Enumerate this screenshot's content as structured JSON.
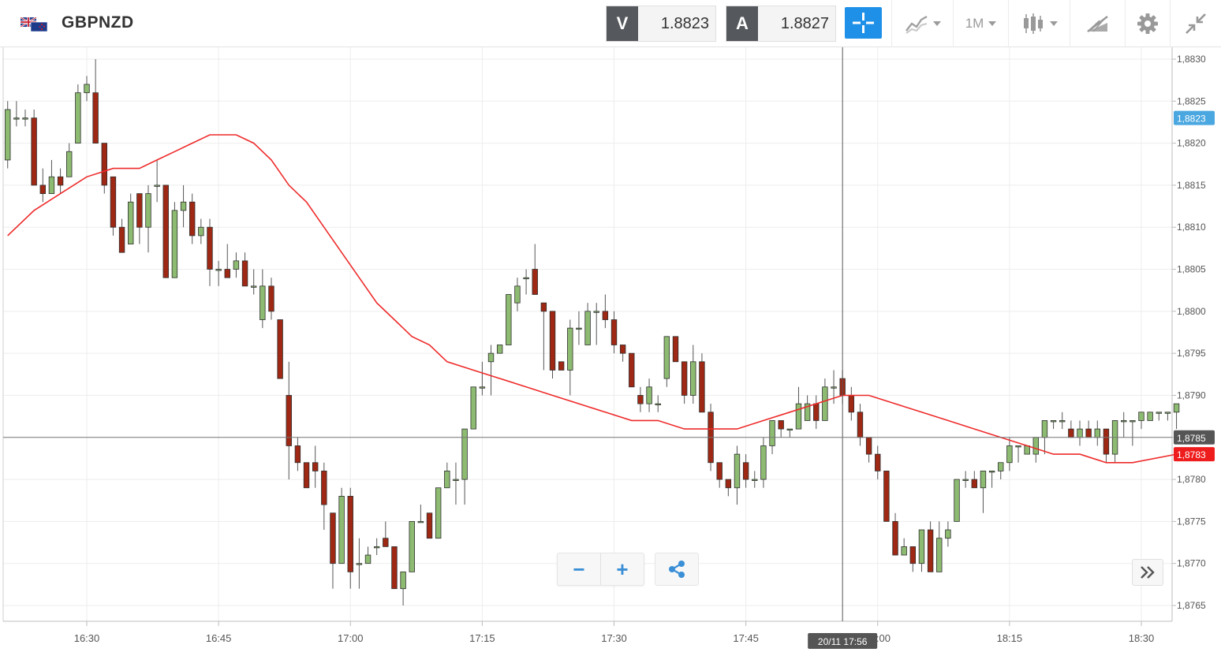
{
  "header": {
    "symbol": "GBPNZD",
    "sell_tag": "V",
    "sell_price": "1.8823",
    "buy_tag": "A",
    "buy_price": "1.8827",
    "timeframe": "1M",
    "icons": {
      "flag": "gb-nz-flag-icon",
      "crosshair": "crosshair-icon",
      "chart_type": "line-chart-icon",
      "indicators": "candlestick-icon",
      "drawing": "drawing-tools-icon",
      "settings": "gear-icon",
      "collapse": "collapse-arrows-icon"
    },
    "colors": {
      "sell_tag_bg": "#55585c",
      "crosshair_active": "#1e90e8"
    }
  },
  "chart_data": {
    "type": "candlestick",
    "title": "",
    "xlabel": "",
    "ylabel": "",
    "grid": true,
    "ylim": [
      1.8763,
      1.8831
    ],
    "y_ticks": [
      "1,8830",
      "1,8825",
      "1,8820",
      "1,8815",
      "1,8810",
      "1,8805",
      "1,8800",
      "1,8795",
      "1,8790",
      "1,8785",
      "1,8780",
      "1,8775",
      "1,8770",
      "1,8765"
    ],
    "x_ticks": [
      "16:30",
      "16:45",
      "17:00",
      "17:15",
      "17:30",
      "17:45",
      "18:00",
      "18:15",
      "18:30"
    ],
    "x_tick_times": [
      30,
      45,
      60,
      75,
      90,
      105,
      120,
      135,
      150
    ],
    "x_start_time": 21,
    "x_end_time": 154,
    "crosshair": {
      "time_label": "20/11 17:56",
      "time": 116,
      "price": 1.8785,
      "price_label": "1,8785"
    },
    "price_labels": [
      {
        "label": "1,8823",
        "value": 1.8823,
        "color": "#4aa7e0"
      },
      {
        "label": "1,8783",
        "value": 1.8783,
        "color": "#ee1c1c"
      }
    ],
    "up_color": "#8dbb71",
    "down_color": "#9e2814",
    "ma_color": "#ee2a2a",
    "ma_series": [
      [
        21,
        1.8809
      ],
      [
        24,
        1.8812
      ],
      [
        27,
        1.8814
      ],
      [
        30,
        1.8816
      ],
      [
        33,
        1.8817
      ],
      [
        36,
        1.8817
      ],
      [
        38,
        1.8818
      ],
      [
        40,
        1.8819
      ],
      [
        42,
        1.882
      ],
      [
        44,
        1.8821
      ],
      [
        46,
        1.8821
      ],
      [
        47,
        1.8821
      ],
      [
        49,
        1.882
      ],
      [
        51,
        1.8818
      ],
      [
        53,
        1.8815
      ],
      [
        55,
        1.8813
      ],
      [
        57,
        1.881
      ],
      [
        59,
        1.8807
      ],
      [
        61,
        1.8804
      ],
      [
        63,
        1.8801
      ],
      [
        65,
        1.8799
      ],
      [
        67,
        1.8797
      ],
      [
        69,
        1.8796
      ],
      [
        71,
        1.8794
      ],
      [
        74,
        1.8793
      ],
      [
        77,
        1.8792
      ],
      [
        80,
        1.8791
      ],
      [
        83,
        1.879
      ],
      [
        86,
        1.8789
      ],
      [
        89,
        1.8788
      ],
      [
        92,
        1.8787
      ],
      [
        95,
        1.8787
      ],
      [
        98,
        1.8786
      ],
      [
        101,
        1.8786
      ],
      [
        104,
        1.8786
      ],
      [
        107,
        1.8787
      ],
      [
        110,
        1.8788
      ],
      [
        113,
        1.8789
      ],
      [
        116,
        1.879
      ],
      [
        119,
        1.879
      ],
      [
        122,
        1.8789
      ],
      [
        125,
        1.8788
      ],
      [
        128,
        1.8787
      ],
      [
        131,
        1.8786
      ],
      [
        134,
        1.8785
      ],
      [
        137,
        1.8784
      ],
      [
        140,
        1.8783
      ],
      [
        143,
        1.8783
      ],
      [
        146,
        1.8782
      ],
      [
        149,
        1.8782
      ],
      [
        154,
        1.8783
      ]
    ],
    "candles": [
      [
        21,
        1.8818,
        1.8824,
        1.8825,
        1.8817
      ],
      [
        22,
        1.8823,
        1.8823,
        1.8825,
        1.8822
      ],
      [
        23,
        1.8823,
        1.8823,
        1.8824,
        1.8822
      ],
      [
        24,
        1.8823,
        1.8815,
        1.8824,
        1.8815
      ],
      [
        25,
        1.8815,
        1.8814,
        1.8817,
        1.8813
      ],
      [
        26,
        1.8814,
        1.8816,
        1.8818,
        1.8814
      ],
      [
        27,
        1.8816,
        1.8815,
        1.8817,
        1.8814
      ],
      [
        28,
        1.8816,
        1.8819,
        1.882,
        1.8816
      ],
      [
        29,
        1.882,
        1.8826,
        1.8827,
        1.882
      ],
      [
        30,
        1.8826,
        1.8827,
        1.8828,
        1.8825
      ],
      [
        31,
        1.8826,
        1.882,
        1.883,
        1.882
      ],
      [
        32,
        1.882,
        1.8815,
        1.882,
        1.8814
      ],
      [
        33,
        1.8816,
        1.881,
        1.8816,
        1.8809
      ],
      [
        34,
        1.881,
        1.8807,
        1.8811,
        1.8807
      ],
      [
        35,
        1.8808,
        1.8813,
        1.8814,
        1.8808
      ],
      [
        36,
        1.8814,
        1.881,
        1.8814,
        1.8808
      ],
      [
        37,
        1.881,
        1.8814,
        1.8815,
        1.8807
      ],
      [
        38,
        1.8815,
        1.8815,
        1.8818,
        1.8813
      ],
      [
        39,
        1.8815,
        1.8804,
        1.8815,
        1.8804
      ],
      [
        40,
        1.8804,
        1.8812,
        1.8813,
        1.8804
      ],
      [
        41,
        1.8812,
        1.8813,
        1.8815,
        1.881
      ],
      [
        42,
        1.8813,
        1.8809,
        1.8814,
        1.8808
      ],
      [
        43,
        1.8809,
        1.881,
        1.8811,
        1.8808
      ],
      [
        44,
        1.881,
        1.8805,
        1.8811,
        1.8803
      ],
      [
        45,
        1.8805,
        1.8805,
        1.8806,
        1.8803
      ],
      [
        46,
        1.8805,
        1.8804,
        1.8808,
        1.8804
      ],
      [
        47,
        1.8805,
        1.8806,
        1.8807,
        1.8804
      ],
      [
        48,
        1.8806,
        1.8803,
        1.8807,
        1.8803
      ],
      [
        49,
        1.8803,
        1.8803,
        1.8805,
        1.8802
      ],
      [
        50,
        1.8799,
        1.8803,
        1.8805,
        1.8798
      ],
      [
        51,
        1.8803,
        1.88,
        1.8804,
        1.8799
      ],
      [
        52,
        1.8799,
        1.8792,
        1.8799,
        1.8792
      ],
      [
        53,
        1.879,
        1.8784,
        1.8794,
        1.878
      ],
      [
        54,
        1.8784,
        1.8782,
        1.8785,
        1.8781
      ],
      [
        55,
        1.8782,
        1.8779,
        1.8782,
        1.8779
      ],
      [
        56,
        1.8782,
        1.8781,
        1.8784,
        1.8779
      ],
      [
        57,
        1.8781,
        1.8777,
        1.8782,
        1.8774
      ],
      [
        58,
        1.8776,
        1.877,
        1.8776,
        1.8767
      ],
      [
        59,
        1.877,
        1.8778,
        1.8779,
        1.877
      ],
      [
        60,
        1.8778,
        1.8769,
        1.8779,
        1.8767
      ],
      [
        61,
        1.877,
        1.877,
        1.8773,
        1.8767
      ],
      [
        62,
        1.877,
        1.8771,
        1.8772,
        1.877
      ],
      [
        63,
        1.8772,
        1.8772,
        1.8773,
        1.8771
      ],
      [
        64,
        1.8773,
        1.8772,
        1.8775,
        1.8772
      ],
      [
        65,
        1.8772,
        1.8767,
        1.8772,
        1.8767
      ],
      [
        66,
        1.8767,
        1.8769,
        1.8769,
        1.8765
      ],
      [
        67,
        1.8769,
        1.8775,
        1.8775,
        1.8769
      ],
      [
        68,
        1.8775,
        1.8775,
        1.8777,
        1.8775
      ],
      [
        69,
        1.8776,
        1.8773,
        1.8776,
        1.8773
      ],
      [
        70,
        1.8773,
        1.8779,
        1.8779,
        1.8773
      ],
      [
        71,
        1.8779,
        1.8781,
        1.8782,
        1.8779
      ],
      [
        72,
        1.878,
        1.878,
        1.8782,
        1.8777
      ],
      [
        73,
        1.878,
        1.8786,
        1.8786,
        1.8777
      ],
      [
        74,
        1.8786,
        1.8791,
        1.8791,
        1.8786
      ],
      [
        75,
        1.8791,
        1.8791,
        1.8794,
        1.879
      ],
      [
        76,
        1.8794,
        1.8795,
        1.8796,
        1.879
      ],
      [
        77,
        1.8795,
        1.8796,
        1.8796,
        1.8795
      ],
      [
        78,
        1.8796,
        1.8802,
        1.8802,
        1.8796
      ],
      [
        79,
        1.8801,
        1.8803,
        1.8804,
        1.88
      ],
      [
        80,
        1.8804,
        1.8804,
        1.8805,
        1.8802
      ],
      [
        81,
        1.8805,
        1.8802,
        1.8808,
        1.8802
      ],
      [
        82,
        1.8801,
        1.88,
        1.8801,
        1.8793
      ],
      [
        83,
        1.88,
        1.8793,
        1.88,
        1.8792
      ],
      [
        84,
        1.8794,
        1.8793,
        1.8794,
        1.8793
      ],
      [
        85,
        1.8793,
        1.8798,
        1.8799,
        1.879
      ],
      [
        86,
        1.8798,
        1.8798,
        1.88,
        1.8796
      ],
      [
        87,
        1.8796,
        1.88,
        1.8801,
        1.8796
      ],
      [
        88,
        1.88,
        1.88,
        1.8801,
        1.8796
      ],
      [
        89,
        1.88,
        1.8799,
        1.8802,
        1.8798
      ],
      [
        90,
        1.8799,
        1.8796,
        1.88,
        1.8795
      ],
      [
        91,
        1.8796,
        1.8795,
        1.8796,
        1.8794
      ],
      [
        92,
        1.8795,
        1.8791,
        1.8795,
        1.8791
      ],
      [
        93,
        1.879,
        1.8789,
        1.8791,
        1.8788
      ],
      [
        94,
        1.8789,
        1.8791,
        1.8792,
        1.8788
      ],
      [
        95,
        1.8789,
        1.8789,
        1.879,
        1.8788
      ],
      [
        96,
        1.8792,
        1.8797,
        1.8797,
        1.8791
      ],
      [
        97,
        1.8797,
        1.8794,
        1.8797,
        1.8794
      ],
      [
        98,
        1.8794,
        1.879,
        1.8794,
        1.8789
      ],
      [
        99,
        1.879,
        1.8794,
        1.8796,
        1.8789
      ],
      [
        100,
        1.8794,
        1.8788,
        1.8795,
        1.8788
      ],
      [
        101,
        1.8788,
        1.8782,
        1.8789,
        1.8781
      ],
      [
        102,
        1.8782,
        1.878,
        1.8782,
        1.8779
      ],
      [
        103,
        1.878,
        1.8779,
        1.878,
        1.8778
      ],
      [
        104,
        1.8779,
        1.8783,
        1.8784,
        1.8777
      ],
      [
        105,
        1.8782,
        1.878,
        1.8783,
        1.8779
      ],
      [
        106,
        1.878,
        1.878,
        1.8781,
        1.8779
      ],
      [
        107,
        1.878,
        1.8784,
        1.8785,
        1.8779
      ],
      [
        108,
        1.8784,
        1.8787,
        1.8787,
        1.8783
      ],
      [
        109,
        1.8787,
        1.8786,
        1.8787,
        1.8785
      ],
      [
        110,
        1.8786,
        1.8786,
        1.8786,
        1.8785
      ],
      [
        111,
        1.8786,
        1.8789,
        1.8791,
        1.8786
      ],
      [
        112,
        1.8787,
        1.8789,
        1.879,
        1.8787
      ],
      [
        113,
        1.8789,
        1.8787,
        1.879,
        1.8786
      ],
      [
        114,
        1.8787,
        1.8791,
        1.8792,
        1.8787
      ],
      [
        115,
        1.8791,
        1.8791,
        1.8793,
        1.8789
      ],
      [
        116,
        1.8792,
        1.879,
        1.8793,
        1.8789
      ],
      [
        117,
        1.879,
        1.8788,
        1.8791,
        1.8787
      ],
      [
        118,
        1.8788,
        1.8785,
        1.8789,
        1.8784
      ],
      [
        119,
        1.8785,
        1.8783,
        1.8785,
        1.8782
      ],
      [
        120,
        1.8783,
        1.8781,
        1.8784,
        1.878
      ],
      [
        121,
        1.8781,
        1.8775,
        1.8781,
        1.8775
      ],
      [
        122,
        1.8775,
        1.8771,
        1.8776,
        1.8771
      ],
      [
        123,
        1.8771,
        1.8772,
        1.8773,
        1.8771
      ],
      [
        124,
        1.8772,
        1.877,
        1.8772,
        1.8769
      ],
      [
        125,
        1.877,
        1.8774,
        1.8774,
        1.8769
      ],
      [
        126,
        1.8774,
        1.8769,
        1.8775,
        1.8769
      ],
      [
        127,
        1.8769,
        1.8773,
        1.8775,
        1.8769
      ],
      [
        128,
        1.8773,
        1.8774,
        1.8775,
        1.8772
      ],
      [
        129,
        1.8775,
        1.878,
        1.878,
        1.8775
      ],
      [
        130,
        1.878,
        1.878,
        1.8781,
        1.8779
      ],
      [
        131,
        1.878,
        1.8779,
        1.8781,
        1.8779
      ],
      [
        132,
        1.8779,
        1.8781,
        1.8781,
        1.8776
      ],
      [
        133,
        1.8781,
        1.8781,
        1.8781,
        1.8779
      ],
      [
        134,
        1.8781,
        1.8782,
        1.8782,
        1.878
      ],
      [
        135,
        1.8782,
        1.8784,
        1.8785,
        1.8781
      ],
      [
        136,
        1.8784,
        1.8784,
        1.8784,
        1.8782
      ],
      [
        137,
        1.8783,
        1.8784,
        1.8784,
        1.8783
      ],
      [
        138,
        1.8783,
        1.8785,
        1.8785,
        1.8782
      ],
      [
        139,
        1.8785,
        1.8787,
        1.8787,
        1.8783
      ],
      [
        140,
        1.8787,
        1.8787,
        1.8787,
        1.8786
      ],
      [
        141,
        1.8787,
        1.8787,
        1.8788,
        1.8786
      ],
      [
        142,
        1.8786,
        1.8785,
        1.8787,
        1.8785
      ],
      [
        143,
        1.8785,
        1.8786,
        1.8787,
        1.8784
      ],
      [
        144,
        1.8786,
        1.8785,
        1.8787,
        1.8785
      ],
      [
        145,
        1.8785,
        1.8786,
        1.8787,
        1.8784
      ],
      [
        146,
        1.8786,
        1.8783,
        1.8786,
        1.8782
      ],
      [
        147,
        1.8783,
        1.8787,
        1.8787,
        1.8782
      ],
      [
        148,
        1.8787,
        1.8787,
        1.8788,
        1.8785
      ],
      [
        149,
        1.8787,
        1.8787,
        1.8787,
        1.8784
      ],
      [
        150,
        1.8787,
        1.8788,
        1.8788,
        1.8786
      ],
      [
        151,
        1.8787,
        1.8788,
        1.8788,
        1.8787
      ],
      [
        152,
        1.8788,
        1.8788,
        1.8788,
        1.8787
      ],
      [
        153,
        1.8788,
        1.8788,
        1.8788,
        1.8787
      ],
      [
        154,
        1.8788,
        1.8789,
        1.8789,
        1.8786
      ]
    ]
  },
  "controls": {
    "zoom_out": "−",
    "zoom_in": "+",
    "share_icon": "share-icon",
    "scroll_right_icon": "chevrons-right-icon"
  }
}
